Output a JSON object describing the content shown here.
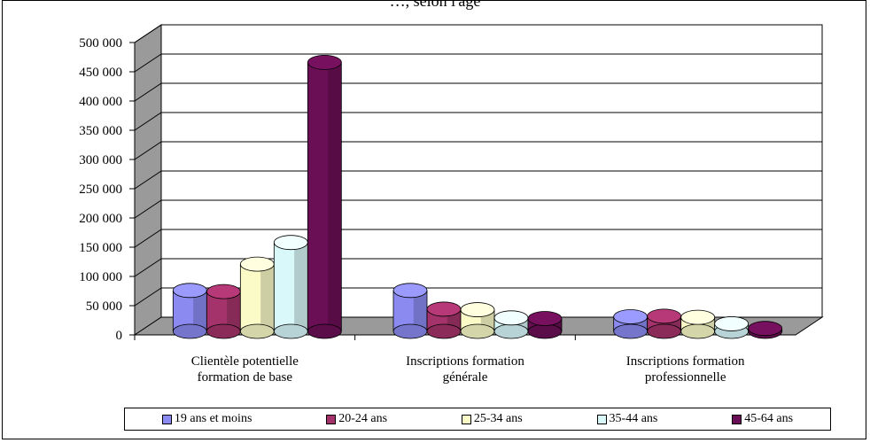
{
  "chart_data": {
    "type": "bar",
    "title_fragment": "…, selon l'âge",
    "categories": [
      [
        "Clientèle potentielle",
        "formation de base"
      ],
      [
        "Inscriptions formation",
        "générale"
      ],
      [
        "Inscriptions formation",
        "professionnelle"
      ]
    ],
    "series": [
      {
        "name": "19 ans et moins",
        "color": "#8a8af0",
        "values": [
          70000,
          70000,
          25000
        ]
      },
      {
        "name": "20-24 ans",
        "color": "#a3336a",
        "values": [
          68000,
          38000,
          26000
        ]
      },
      {
        "name": "25-34 ans",
        "color": "#fbfbc8",
        "values": [
          115000,
          37000,
          24000
        ]
      },
      {
        "name": "35-44 ans",
        "color": "#d8f8fa",
        "values": [
          152000,
          23000,
          13000
        ]
      },
      {
        "name": "45-64 ans",
        "color": "#6a0f55",
        "values": [
          460000,
          22000,
          5000
        ]
      }
    ],
    "y_ticks": [
      "500 000",
      "450 000",
      "400 000",
      "350 000",
      "300 000",
      "250 000",
      "200 000",
      "150 000",
      "100 000",
      "50 000",
      "0"
    ],
    "ylim": [
      0,
      500000
    ],
    "grid": true,
    "legend_position": "bottom"
  }
}
